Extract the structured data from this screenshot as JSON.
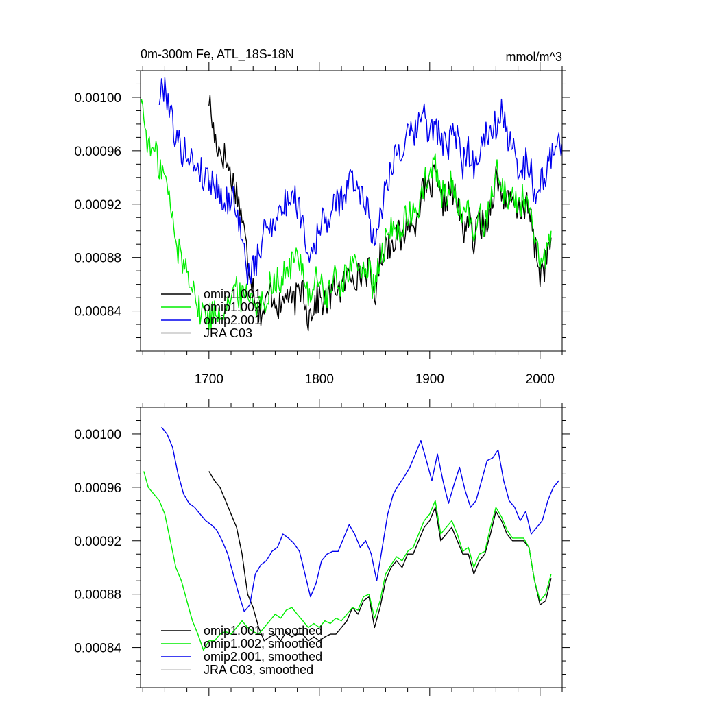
{
  "chart_data": [
    {
      "type": "line",
      "title": "0m-300m Fe, ATL_18S-18N",
      "units": "mmol/m^3",
      "xlim": [
        1638,
        2020
      ],
      "ylim": [
        0.00081,
        0.00102
      ],
      "xticks": [
        1700,
        1800,
        1900,
        2000
      ],
      "yticks": [
        0.00084,
        0.00088,
        0.00092,
        0.00096,
        0.001
      ],
      "yticklabels": [
        "0.00084",
        "0.00088",
        "0.00092",
        "0.00096",
        "0.00100"
      ],
      "show_xtick_labels": true,
      "legend": [
        "omip1.001",
        "omip1.002",
        "omip2.001",
        "JRA C03"
      ],
      "series": [
        {
          "name": "omip1.001",
          "color": "#000000",
          "noise": 1.2e-05,
          "x": [
            1700,
            1705,
            1710,
            1715,
            1720,
            1725,
            1730,
            1735,
            1740,
            1745,
            1750,
            1755,
            1760,
            1765,
            1770,
            1775,
            1780,
            1785,
            1790,
            1795,
            1800,
            1805,
            1810,
            1815,
            1820,
            1825,
            1830,
            1835,
            1840,
            1845,
            1850,
            1855,
            1860,
            1865,
            1870,
            1875,
            1880,
            1885,
            1890,
            1895,
            1900,
            1905,
            1910,
            1915,
            1920,
            1925,
            1930,
            1935,
            1940,
            1945,
            1950,
            1955,
            1960,
            1965,
            1970,
            1975,
            1980,
            1985,
            1990,
            1995,
            2000,
            2005,
            2010
          ],
          "y": [
            0.001,
            0.00097,
            0.00096,
            0.000955,
            0.00094,
            0.00093,
            0.00091,
            0.00088,
            0.00086,
            0.00084,
            0.00084,
            0.000855,
            0.00085,
            0.00084,
            0.000855,
            0.000845,
            0.00085,
            0.00086,
            0.000835,
            0.000845,
            0.00085,
            0.000845,
            0.00085,
            0.00086,
            0.000855,
            0.000865,
            0.00087,
            0.000865,
            0.00087,
            0.00087,
            0.00085,
            0.00088,
            0.00089,
            0.00089,
            0.0009,
            0.00089,
            0.00091,
            0.0009,
            0.00092,
            0.00093,
            0.00093,
            0.00094,
            0.00092,
            0.000925,
            0.00093,
            0.00092,
            0.0009,
            0.00091,
            0.00089,
            0.00091,
            0.0009,
            0.00092,
            0.00094,
            0.00093,
            0.00092,
            0.00092,
            0.000915,
            0.00092,
            0.000915,
            0.00089,
            0.000868,
            0.000875,
            0.000895
          ]
        },
        {
          "name": "omip1.002",
          "color": "#00ee00",
          "noise": 1.2e-05,
          "x": [
            1638,
            1642,
            1646,
            1650,
            1655,
            1660,
            1665,
            1670,
            1675,
            1680,
            1685,
            1690,
            1695,
            1700,
            1705,
            1710,
            1715,
            1720,
            1725,
            1730,
            1735,
            1740,
            1745,
            1750,
            1755,
            1760,
            1765,
            1770,
            1775,
            1780,
            1785,
            1790,
            1795,
            1800,
            1805,
            1810,
            1815,
            1820,
            1825,
            1830,
            1835,
            1840,
            1845,
            1850,
            1855,
            1860,
            1865,
            1870,
            1875,
            1880,
            1885,
            1890,
            1895,
            1900,
            1905,
            1910,
            1915,
            1920,
            1925,
            1930,
            1935,
            1940,
            1945,
            1950,
            1955,
            1960,
            1965,
            1970,
            1975,
            1980,
            1985,
            1990,
            1995,
            2000,
            2005,
            2010
          ],
          "y": [
            0.001,
            0.00098,
            0.00096,
            0.00096,
            0.00095,
            0.00094,
            0.00092,
            0.00089,
            0.00088,
            0.00087,
            0.000865,
            0.00084,
            0.00084,
            0.000835,
            0.00084,
            0.00084,
            0.000845,
            0.00085,
            0.000855,
            0.00085,
            0.000855,
            0.00085,
            0.000845,
            0.000845,
            0.00086,
            0.000865,
            0.00086,
            0.00087,
            0.000875,
            0.00088,
            0.000875,
            0.00085,
            0.00086,
            0.000865,
            0.00085,
            0.000855,
            0.000865,
            0.00086,
            0.00087,
            0.000875,
            0.00087,
            0.000875,
            0.00087,
            0.000852,
            0.00088,
            0.00089,
            0.0009,
            0.0009,
            0.000905,
            0.00091,
            0.00091,
            0.00092,
            0.000935,
            0.00094,
            0.00095,
            0.000925,
            0.00093,
            0.000935,
            0.000925,
            0.000905,
            0.000915,
            0.000895,
            0.00091,
            0.000905,
            0.000925,
            0.000945,
            0.000935,
            0.000925,
            0.000925,
            0.00092,
            0.000925,
            0.00092,
            0.00089,
            0.000872,
            0.00088,
            0.0009
          ]
        },
        {
          "name": "omip2.001",
          "color": "#0000ee",
          "noise": 1.2e-05,
          "x": [
            1655,
            1660,
            1665,
            1670,
            1675,
            1680,
            1685,
            1690,
            1695,
            1700,
            1705,
            1710,
            1715,
            1720,
            1725,
            1730,
            1735,
            1740,
            1745,
            1750,
            1755,
            1760,
            1765,
            1770,
            1775,
            1780,
            1785,
            1790,
            1795,
            1800,
            1805,
            1810,
            1815,
            1820,
            1825,
            1830,
            1835,
            1840,
            1845,
            1850,
            1855,
            1860,
            1865,
            1870,
            1875,
            1880,
            1885,
            1890,
            1895,
            1900,
            1905,
            1910,
            1915,
            1920,
            1925,
            1930,
            1935,
            1940,
            1945,
            1950,
            1955,
            1960,
            1965,
            1970,
            1975,
            1980,
            1985,
            1990,
            1995,
            2000,
            2005,
            2010,
            2015,
            2020
          ],
          "y": [
            0.001,
            0.00101,
            0.00099,
            0.00097,
            0.00096,
            0.00096,
            0.00095,
            0.00095,
            0.00094,
            0.00094,
            0.000935,
            0.00093,
            0.00092,
            0.000925,
            0.00092,
            0.00089,
            0.00087,
            0.00087,
            0.00088,
            0.0009,
            0.000905,
            0.00091,
            0.000915,
            0.00092,
            0.00093,
            0.00092,
            0.00091,
            0.00088,
            0.00089,
            0.0009,
            0.00091,
            0.00091,
            0.00092,
            0.000925,
            0.00093,
            0.00094,
            0.00093,
            0.00093,
            0.00091,
            0.00089,
            0.000915,
            0.00093,
            0.00095,
            0.00096,
            0.00096,
            0.00097,
            0.00097,
            0.00098,
            0.00099,
            0.00097,
            0.00098,
            0.00097,
            0.00096,
            0.00097,
            0.00097,
            0.00095,
            0.00096,
            0.00095,
            0.00096,
            0.00097,
            0.00098,
            0.00098,
            0.00099,
            0.00097,
            0.00096,
            0.00095,
            0.00095,
            0.00095,
            0.00093,
            0.000935,
            0.00094,
            0.000955,
            0.00097,
            0.000965
          ]
        }
      ]
    },
    {
      "type": "line",
      "title": "",
      "units": "",
      "xlim": [
        1638,
        2020
      ],
      "ylim": [
        0.00081,
        0.00102
      ],
      "xticks": [
        1700,
        1800,
        1900,
        2000
      ],
      "yticks": [
        0.00084,
        0.00088,
        0.00092,
        0.00096,
        0.001
      ],
      "yticklabels": [
        "0.00084",
        "0.00088",
        "0.00092",
        "0.00096",
        "0.00100"
      ],
      "show_xtick_labels": false,
      "legend": [
        "omip1.001, smoothed",
        "omip1.002, smoothed",
        "omip2.001, smoothed",
        "JRA C03, smoothed"
      ],
      "series": [
        {
          "name": "omip1.001, smoothed",
          "color": "#000000",
          "noise": 0,
          "x": [
            1700,
            1705,
            1710,
            1715,
            1720,
            1725,
            1730,
            1735,
            1740,
            1745,
            1750,
            1755,
            1760,
            1765,
            1770,
            1775,
            1780,
            1785,
            1790,
            1795,
            1800,
            1805,
            1810,
            1815,
            1820,
            1825,
            1830,
            1835,
            1840,
            1845,
            1850,
            1855,
            1860,
            1865,
            1870,
            1875,
            1880,
            1885,
            1890,
            1895,
            1900,
            1905,
            1910,
            1915,
            1920,
            1925,
            1930,
            1935,
            1940,
            1945,
            1950,
            1955,
            1960,
            1965,
            1970,
            1975,
            1980,
            1985,
            1990,
            1995,
            2000,
            2005,
            2010
          ],
          "y": [
            0.000972,
            0.000965,
            0.00096,
            0.00095,
            0.00094,
            0.00093,
            0.00091,
            0.00088,
            0.00087,
            0.000855,
            0.000845,
            0.000848,
            0.00085,
            0.000845,
            0.000852,
            0.000848,
            0.00085,
            0.00085,
            0.000845,
            0.000848,
            0.000845,
            0.000848,
            0.00085,
            0.00085,
            0.000855,
            0.00086,
            0.00087,
            0.000865,
            0.000875,
            0.000878,
            0.000855,
            0.00087,
            0.00089,
            0.0009,
            0.000905,
            0.0009,
            0.00091,
            0.00091,
            0.00092,
            0.00093,
            0.000935,
            0.000945,
            0.00092,
            0.000925,
            0.00093,
            0.00092,
            0.00091,
            0.00091,
            0.000895,
            0.000905,
            0.00091,
            0.000925,
            0.000942,
            0.000935,
            0.000925,
            0.00092,
            0.00092,
            0.00092,
            0.000915,
            0.00089,
            0.000872,
            0.000875,
            0.000892
          ]
        },
        {
          "name": "omip1.002, smoothed",
          "color": "#00ee00",
          "noise": 0,
          "x": [
            1641,
            1645,
            1650,
            1655,
            1660,
            1665,
            1670,
            1675,
            1680,
            1685,
            1690,
            1695,
            1700,
            1705,
            1710,
            1715,
            1720,
            1725,
            1730,
            1735,
            1740,
            1745,
            1750,
            1755,
            1760,
            1765,
            1770,
            1775,
            1780,
            1785,
            1790,
            1795,
            1800,
            1805,
            1810,
            1815,
            1820,
            1825,
            1830,
            1835,
            1840,
            1845,
            1850,
            1855,
            1860,
            1865,
            1870,
            1875,
            1880,
            1885,
            1890,
            1895,
            1900,
            1905,
            1910,
            1915,
            1920,
            1925,
            1930,
            1935,
            1940,
            1945,
            1950,
            1955,
            1960,
            1965,
            1970,
            1975,
            1980,
            1985,
            1990,
            1995,
            2000,
            2005,
            2010
          ],
          "y": [
            0.000972,
            0.00096,
            0.000955,
            0.00095,
            0.00094,
            0.00092,
            0.0009,
            0.00089,
            0.000875,
            0.00086,
            0.00085,
            0.000838,
            0.000845,
            0.000845,
            0.00085,
            0.000852,
            0.00085,
            0.000855,
            0.00086,
            0.000855,
            0.000852,
            0.00085,
            0.000855,
            0.00086,
            0.000865,
            0.000862,
            0.000868,
            0.00087,
            0.000865,
            0.00086,
            0.000855,
            0.000858,
            0.000855,
            0.00086,
            0.000858,
            0.000862,
            0.00086,
            0.000865,
            0.00087,
            0.000868,
            0.000878,
            0.00088,
            0.000862,
            0.000875,
            0.000895,
            0.000902,
            0.000908,
            0.000905,
            0.000912,
            0.000915,
            0.000925,
            0.000935,
            0.00094,
            0.00095,
            0.000925,
            0.00093,
            0.000935,
            0.000925,
            0.000912,
            0.000915,
            0.0009,
            0.00091,
            0.000912,
            0.00093,
            0.000945,
            0.000938,
            0.000928,
            0.000922,
            0.000922,
            0.000922,
            0.000915,
            0.00089,
            0.000875,
            0.00088,
            0.000895
          ]
        },
        {
          "name": "omip2.001, smoothed",
          "color": "#0000ee",
          "noise": 0,
          "x": [
            1657,
            1662,
            1667,
            1672,
            1677,
            1682,
            1687,
            1692,
            1697,
            1702,
            1707,
            1712,
            1717,
            1722,
            1727,
            1732,
            1737,
            1742,
            1747,
            1752,
            1757,
            1762,
            1767,
            1772,
            1777,
            1782,
            1787,
            1792,
            1797,
            1802,
            1807,
            1812,
            1817,
            1822,
            1827,
            1832,
            1837,
            1842,
            1847,
            1852,
            1857,
            1862,
            1867,
            1872,
            1877,
            1882,
            1887,
            1892,
            1897,
            1902,
            1907,
            1912,
            1917,
            1922,
            1927,
            1932,
            1937,
            1942,
            1947,
            1952,
            1957,
            1962,
            1967,
            1972,
            1977,
            1982,
            1987,
            1992,
            1997,
            2002,
            2007,
            2012,
            2017
          ],
          "y": [
            0.001005,
            0.001,
            0.00099,
            0.00097,
            0.000955,
            0.000948,
            0.000945,
            0.00094,
            0.000935,
            0.000932,
            0.000928,
            0.00092,
            0.00091,
            0.000895,
            0.00088,
            0.000867,
            0.000872,
            0.000895,
            0.000902,
            0.000905,
            0.000912,
            0.000915,
            0.000925,
            0.000922,
            0.000918,
            0.000912,
            0.000895,
            0.000878,
            0.000888,
            0.000905,
            0.00091,
            0.000912,
            0.000912,
            0.000922,
            0.000932,
            0.000925,
            0.000915,
            0.00092,
            0.00091,
            0.00089,
            0.000915,
            0.00094,
            0.000955,
            0.000962,
            0.000968,
            0.000975,
            0.000985,
            0.000995,
            0.00098,
            0.000965,
            0.000985,
            0.000965,
            0.000948,
            0.000962,
            0.000975,
            0.000958,
            0.000945,
            0.00095,
            0.000965,
            0.00098,
            0.000982,
            0.000988,
            0.000965,
            0.00095,
            0.000945,
            0.000935,
            0.000942,
            0.000925,
            0.00093,
            0.000935,
            0.00095,
            0.00096,
            0.000965
          ]
        }
      ]
    }
  ]
}
